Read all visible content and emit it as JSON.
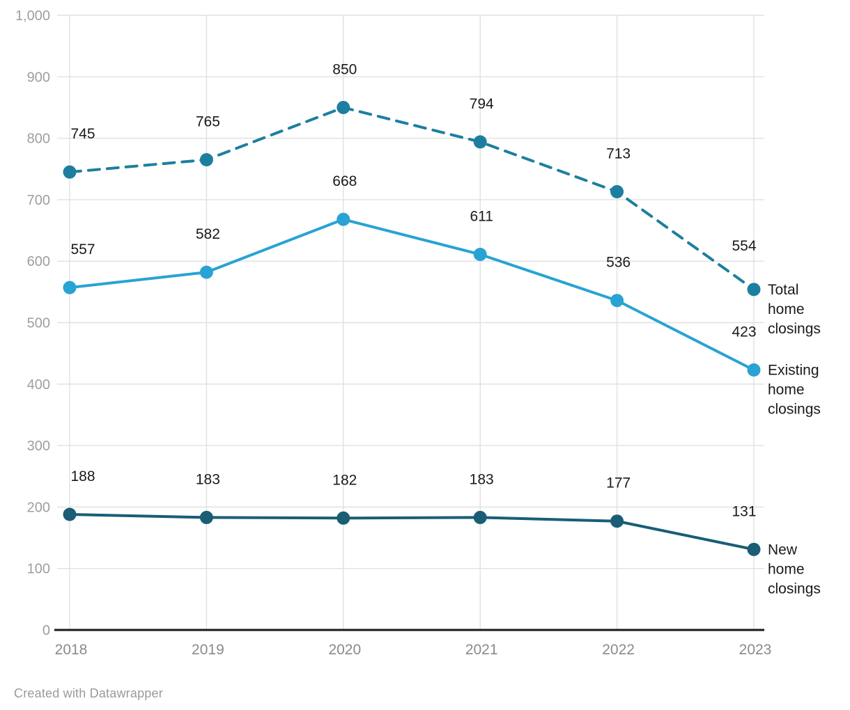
{
  "footer": {
    "credit": "Created with Datawrapper"
  },
  "chart_data": {
    "type": "line",
    "x": [
      "2018",
      "2019",
      "2020",
      "2021",
      "2022",
      "2023"
    ],
    "series": [
      {
        "name": "Total home closings",
        "values": [
          745,
          765,
          850,
          794,
          713,
          554
        ],
        "data_labels": [
          "745",
          "765",
          "850",
          "794",
          "713",
          "554"
        ],
        "color": "#1d7f9f",
        "dashed": true,
        "label_lines": [
          "Total",
          "home",
          "closings"
        ]
      },
      {
        "name": "Existing home closings",
        "values": [
          557,
          582,
          668,
          611,
          536,
          423
        ],
        "data_labels": [
          "557",
          "582",
          "668",
          "611",
          "536",
          "423"
        ],
        "color": "#29a3d3",
        "dashed": false,
        "label_lines": [
          "Existing",
          "home",
          "closings"
        ]
      },
      {
        "name": "New home closings",
        "values": [
          188,
          183,
          182,
          183,
          177,
          131
        ],
        "data_labels": [
          "188",
          "183",
          "182",
          "183",
          "177",
          "131"
        ],
        "color": "#1a5d75",
        "dashed": false,
        "label_lines": [
          "New",
          "home",
          "closings"
        ]
      }
    ],
    "title": "",
    "xlabel": "",
    "ylabel": "",
    "ylim": [
      0,
      1000
    ],
    "ytick_values": [
      0,
      100,
      200,
      300,
      400,
      500,
      600,
      700,
      800,
      900,
      1000
    ],
    "ytick_labels": [
      "0",
      "100",
      "200",
      "300",
      "400",
      "500",
      "600",
      "700",
      "800",
      "900",
      "1,000"
    ],
    "grid": true,
    "legend_position": "right-of-line-ends",
    "colors": {
      "data_label": "#1a1a1a",
      "series_label": "#1a1a1a",
      "y_tick_label": "#9e9e9e",
      "x_tick_label": "#8a8a8a",
      "gridline": "#e0e0e0",
      "axis_line": "#1a1a1a"
    }
  }
}
